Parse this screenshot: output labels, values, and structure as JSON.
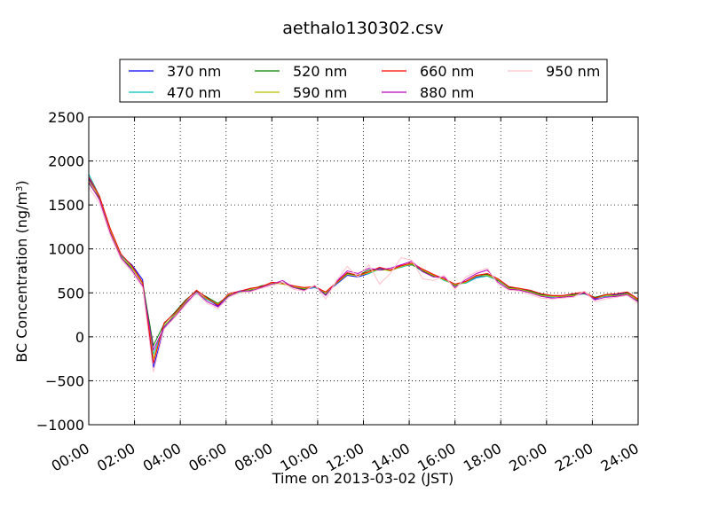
{
  "chart_data": {
    "type": "line",
    "title": "aethalo130302.csv",
    "xlabel": "Time on 2013-03-02 (JST)",
    "ylabel_main": "BC Concentration (ng/m",
    "ylabel_sup": "3",
    "ylabel_end": ")",
    "xlim": [
      "2013-03-02 00:00",
      "2013-03-03 00:00"
    ],
    "ylim": [
      -1000,
      2500
    ],
    "x_ticks": [
      "00:00",
      "02:00",
      "04:00",
      "06:00",
      "08:00",
      "10:00",
      "12:00",
      "14:00",
      "16:00",
      "18:00",
      "20:00",
      "22:00",
      "24:00"
    ],
    "y_ticks": [
      "2500",
      "2000",
      "1500",
      "1000",
      "500",
      "0",
      "−500",
      "−1000"
    ],
    "grid": true,
    "legend_position": "top",
    "x_step_minutes": 20,
    "series": [
      {
        "name": "370 nm",
        "color": "#0000ff",
        "values": [
          1800,
          1580,
          1200,
          920,
          820,
          650,
          -350,
          100,
          250,
          380,
          500,
          430,
          350,
          480,
          500,
          550,
          560,
          620,
          600,
          580,
          540,
          560,
          500,
          600,
          700,
          680,
          720,
          780,
          750,
          800,
          820,
          760,
          700,
          650,
          590,
          620,
          680,
          700,
          650,
          560,
          540,
          520,
          480,
          460,
          460,
          480,
          500,
          430,
          470,
          480,
          500,
          420
        ]
      },
      {
        "name": "470 nm",
        "color": "#00bfbf",
        "values": [
          1850,
          1600,
          1220,
          930,
          800,
          600,
          -200,
          120,
          260,
          400,
          490,
          420,
          360,
          470,
          510,
          540,
          570,
          610,
          610,
          570,
          550,
          560,
          510,
          610,
          720,
          700,
          720,
          770,
          760,
          790,
          830,
          740,
          710,
          640,
          600,
          610,
          670,
          690,
          640,
          550,
          530,
          510,
          470,
          450,
          470,
          470,
          490,
          440,
          460,
          470,
          490,
          430
        ]
      },
      {
        "name": "520 nm",
        "color": "#008000",
        "values": [
          1750,
          1570,
          1190,
          900,
          780,
          620,
          -100,
          150,
          280,
          420,
          520,
          450,
          380,
          470,
          520,
          530,
          580,
          600,
          620,
          560,
          540,
          580,
          480,
          620,
          720,
          700,
          760,
          760,
          760,
          810,
          820,
          750,
          690,
          660,
          580,
          630,
          700,
          710,
          640,
          560,
          540,
          520,
          480,
          470,
          450,
          480,
          490,
          450,
          480,
          460,
          500,
          410
        ]
      },
      {
        "name": "590 nm",
        "color": "#bfbf00",
        "values": [
          1780,
          1590,
          1210,
          910,
          790,
          600,
          -250,
          130,
          250,
          390,
          500,
          430,
          370,
          480,
          500,
          540,
          560,
          610,
          600,
          570,
          550,
          570,
          500,
          610,
          710,
          690,
          730,
          770,
          750,
          800,
          830,
          760,
          700,
          650,
          590,
          620,
          690,
          700,
          650,
          550,
          540,
          510,
          470,
          460,
          460,
          470,
          500,
          440,
          470,
          470,
          490,
          420
        ]
      },
      {
        "name": "660 nm",
        "color": "#ff0000",
        "values": [
          1820,
          1600,
          1230,
          940,
          810,
          620,
          -300,
          160,
          270,
          410,
          530,
          440,
          360,
          490,
          520,
          550,
          570,
          620,
          610,
          580,
          560,
          570,
          510,
          620,
          730,
          700,
          740,
          790,
          760,
          810,
          840,
          770,
          710,
          660,
          600,
          630,
          700,
          720,
          660,
          570,
          550,
          530,
          490,
          470,
          470,
          490,
          510,
          440,
          480,
          490,
          510,
          430
        ]
      },
      {
        "name": "880 nm",
        "color": "#bf00bf",
        "values": [
          1760,
          1560,
          1180,
          900,
          760,
          580,
          -150,
          110,
          230,
          380,
          510,
          400,
          340,
          460,
          520,
          520,
          560,
          600,
          640,
          560,
          530,
          580,
          470,
          630,
          750,
          720,
          780,
          760,
          780,
          820,
          860,
          740,
          680,
          680,
          560,
          650,
          720,
          760,
          620,
          540,
          530,
          500,
          460,
          440,
          450,
          460,
          500,
          420,
          450,
          460,
          480,
          400
        ]
      },
      {
        "name": "950 nm",
        "color": "#ffc0cb",
        "values": [
          1700,
          1520,
          1150,
          880,
          740,
          560,
          -400,
          90,
          220,
          360,
          500,
          380,
          320,
          450,
          500,
          510,
          550,
          580,
          620,
          540,
          520,
          590,
          430,
          640,
          800,
          680,
          820,
          600,
          720,
          900,
          870,
          660,
          640,
          700,
          540,
          680,
          740,
          780,
          600,
          530,
          520,
          480,
          440,
          430,
          440,
          450,
          520,
          400,
          430,
          450,
          470,
          380
        ]
      }
    ]
  }
}
